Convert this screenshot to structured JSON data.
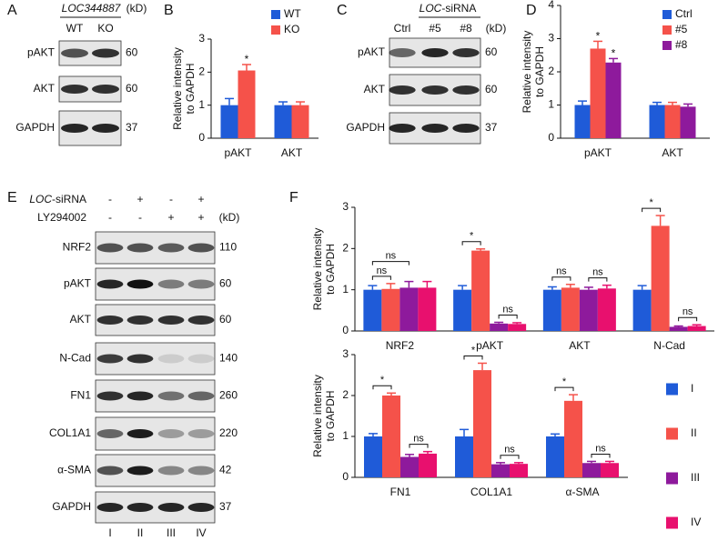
{
  "chart_data": [
    {
      "type": "bar",
      "panel": "B",
      "ylabel": [
        "Relative intensity",
        "to GAPDH"
      ],
      "categories": [
        "pAKT",
        "AKT"
      ],
      "series": [
        {
          "name": "WT",
          "color": "#1f5bd8",
          "values": [
            1,
            1
          ],
          "errors": [
            0.2,
            0.1
          ]
        },
        {
          "name": "KO",
          "color": "#f5524a",
          "values": [
            2.05,
            1
          ],
          "errors": [
            0.18,
            0.1
          ]
        }
      ],
      "ylim": [
        0,
        3
      ],
      "yticks": [
        0,
        1,
        2,
        3
      ],
      "annotations": [
        "*"
      ],
      "legend": "upper right"
    },
    {
      "type": "bar",
      "panel": "D",
      "ylabel": [
        "Relative intensity",
        "to GAPDH"
      ],
      "categories": [
        "pAKT",
        "AKT"
      ],
      "series": [
        {
          "name": "Ctrl",
          "color": "#1f5bd8",
          "values": [
            1,
            1
          ],
          "errors": [
            0.12,
            0.08
          ]
        },
        {
          "name": "#5",
          "color": "#f5524a",
          "values": [
            2.7,
            1
          ],
          "errors": [
            0.22,
            0.08
          ]
        },
        {
          "name": "#8",
          "color": "#8e1a9c",
          "values": [
            2.28,
            0.95
          ],
          "errors": [
            0.12,
            0.08
          ]
        }
      ],
      "ylim": [
        0,
        4
      ],
      "yticks": [
        0,
        1,
        2,
        3,
        4
      ],
      "annotations": [
        "*",
        "*"
      ],
      "legend": "upper right"
    },
    {
      "type": "bar",
      "panel": "F",
      "ylabel": [
        "Relative intensity",
        "to GAPDH"
      ],
      "categories": [
        "NRF2",
        "pAKT",
        "AKT",
        "N-Cad"
      ],
      "series": [
        {
          "color": "#1f5bd8",
          "values": [
            1,
            1,
            1,
            1
          ],
          "errors": [
            0.1,
            0.1,
            0.07,
            0.1
          ]
        },
        {
          "color": "#f5524a",
          "values": [
            1.02,
            1.95,
            1.05,
            2.55
          ],
          "errors": [
            0.13,
            0.04,
            0.08,
            0.25
          ]
        },
        {
          "color": "#8e1a9c",
          "values": [
            1.05,
            0.18,
            1,
            0.1
          ],
          "errors": [
            0.15,
            0.03,
            0.06,
            0.02
          ]
        },
        {
          "color": "#e8106e",
          "values": [
            1.05,
            0.17,
            1.03,
            0.12
          ],
          "errors": [
            0.15,
            0.03,
            0.08,
            0.03
          ]
        }
      ],
      "ylim": [
        0,
        3
      ],
      "yticks": [
        0,
        1,
        2,
        3
      ],
      "annotations": [
        "ns",
        "ns",
        "*",
        "ns",
        "ns",
        "ns",
        "*",
        "ns"
      ]
    },
    {
      "type": "bar",
      "ylabel": [
        "Relative intensity",
        "to GAPDH"
      ],
      "categories": [
        "FN1",
        "COL1A1",
        "α-SMA"
      ],
      "series": [
        {
          "name": "I",
          "color": "#1f5bd8",
          "values": [
            1,
            1,
            1
          ],
          "errors": [
            0.07,
            0.17,
            0.06
          ]
        },
        {
          "name": "II",
          "color": "#f5524a",
          "values": [
            2,
            2.62,
            1.87
          ],
          "errors": [
            0.06,
            0.17,
            0.15
          ]
        },
        {
          "name": "III",
          "color": "#8e1a9c",
          "values": [
            0.5,
            0.32,
            0.35
          ],
          "errors": [
            0.06,
            0.04,
            0.04
          ]
        },
        {
          "name": "IV",
          "color": "#e8106e",
          "values": [
            0.58,
            0.33,
            0.35
          ],
          "errors": [
            0.05,
            0.03,
            0.04
          ]
        }
      ],
      "ylim": [
        0,
        3
      ],
      "yticks": [
        0,
        1,
        2,
        3
      ],
      "annotations": [
        "*",
        "ns",
        "*",
        "ns",
        "*",
        "ns"
      ],
      "legend": "right"
    }
  ],
  "blots": [
    {
      "panel": "A",
      "header": "LOC344887",
      "lanes": [
        "WT",
        "KO"
      ],
      "unit": "(kD)",
      "rows": [
        {
          "label": "pAKT",
          "kd": 60
        },
        {
          "label": "AKT",
          "kd": 60
        },
        {
          "label": "GAPDH",
          "kd": 37
        }
      ]
    },
    {
      "panel": "C",
      "header": {
        "italic": "LOC",
        "text": "-siRNA"
      },
      "lanes": [
        "Ctrl",
        "#5",
        "#8"
      ],
      "unit": "(kD)",
      "rows": [
        {
          "label": "pAKT",
          "kd": 60
        },
        {
          "label": "AKT",
          "kd": 60
        },
        {
          "label": "GAPDH",
          "kd": 37
        }
      ]
    },
    {
      "panel": "E",
      "treatments": [
        {
          "name": {
            "italic": "LOC",
            "text": "-siRNA"
          },
          "signs": [
            "-",
            "+",
            "-",
            "+"
          ]
        },
        {
          "name": "LY294002",
          "signs": [
            "-",
            "-",
            "+",
            "+"
          ]
        }
      ],
      "unit": "(kD)",
      "lanes": [
        "I",
        "II",
        "III",
        "IV"
      ],
      "rows": [
        {
          "label": "NRF2",
          "kd": 110
        },
        {
          "label": "pAKT",
          "kd": 60
        },
        {
          "label": "AKT",
          "kd": 60
        },
        {
          "label": "N-Cad",
          "kd": 140
        },
        {
          "label": "FN1",
          "kd": 260
        },
        {
          "label": "COL1A1",
          "kd": 220
        },
        {
          "label": "α-SMA",
          "kd": 42
        },
        {
          "label": "GAPDH",
          "kd": 37
        }
      ]
    }
  ]
}
